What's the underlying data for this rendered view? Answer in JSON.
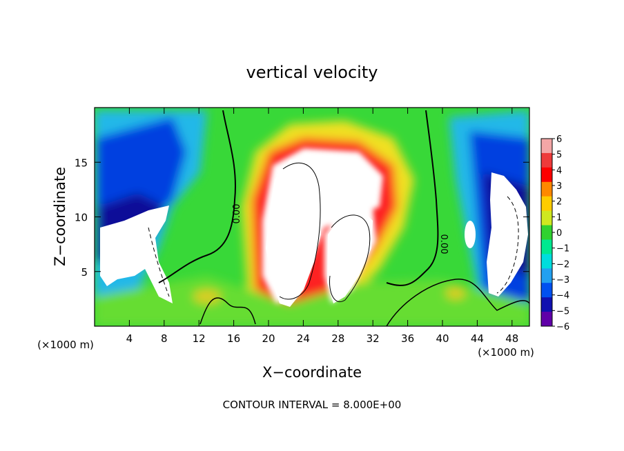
{
  "chart_data": {
    "type": "heatmap",
    "title": "vertical velocity",
    "xlabel": "X−coordinate",
    "ylabel": "Z−coordinate",
    "x_unit_label": "(×1000 m)",
    "x_unit_label_right": "(×1000 m)",
    "xlim": [
      0,
      50
    ],
    "ylim": [
      0,
      20
    ],
    "x_ticks": [
      4,
      8,
      12,
      16,
      20,
      24,
      28,
      32,
      36,
      40,
      44,
      48
    ],
    "y_ticks": [
      5,
      10,
      15
    ],
    "footer": "CONTOUR INTERVAL = 8.000E+00",
    "contour_labels": [
      "0.00",
      "0.00"
    ],
    "colorbar": {
      "labels": [
        "6",
        "5",
        "4",
        "3",
        "2",
        "1",
        "0",
        "−1",
        "−2",
        "−3",
        "−4",
        "−5",
        "−6"
      ],
      "range": [
        -6,
        6
      ],
      "colors": [
        "#f4a6a6",
        "#ee3b3b",
        "#fd0000",
        "#ff8800",
        "#ffcc00",
        "#cfe820",
        "#30d230",
        "#00e890",
        "#00dddd",
        "#22a0f0",
        "#0050f0",
        "#1010b0",
        "#6000a8"
      ]
    }
  }
}
